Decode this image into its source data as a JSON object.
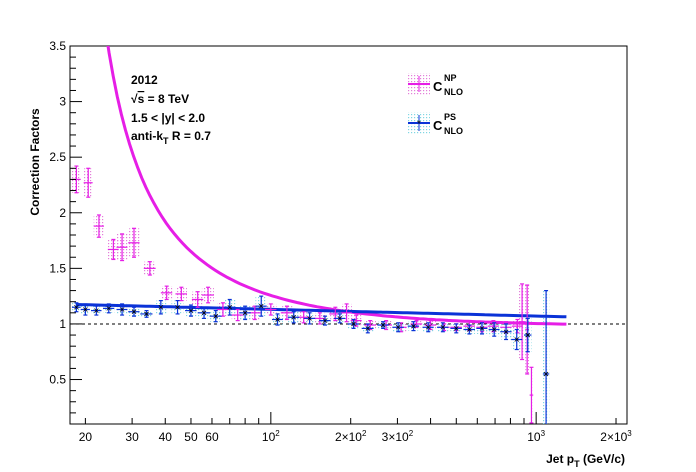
{
  "chart_data": {
    "type": "scatter",
    "title": "",
    "xlabel": "Jet p",
    "xlabel_sub": "T",
    "xlabel_unit": " (GeV/c)",
    "ylabel": "Correction Factors",
    "xscale": "log",
    "xlim": [
      17.5,
      2200
    ],
    "ylim": [
      0.1,
      3.5
    ],
    "grid": false,
    "reference_line": 1.0,
    "x_tick_labels": [
      {
        "x": 20,
        "text": "20"
      },
      {
        "x": 30,
        "text": "30"
      },
      {
        "x": 40,
        "text": "40"
      },
      {
        "x": 50,
        "text": "50"
      },
      {
        "x": 60,
        "text": "60"
      },
      {
        "x": 100,
        "text": "10",
        "sup": "2"
      },
      {
        "x": 200,
        "text": "2×10",
        "sup": "2"
      },
      {
        "x": 300,
        "text": "3×10",
        "sup": "2"
      },
      {
        "x": 1000,
        "text": "10",
        "sup": "3"
      },
      {
        "x": 2000,
        "text": "2×10",
        "sup": "3"
      }
    ],
    "y_tick_labels": [
      "0.5",
      "1",
      "1.5",
      "2",
      "2.5",
      "3",
      "3.5"
    ],
    "y_ticks": [
      0.5,
      1,
      1.5,
      2,
      2.5,
      3,
      3.5
    ],
    "annotations": {
      "year": "2012",
      "energy_sqrt": "s",
      "energy_rest": " = 8 TeV",
      "rapidity": "1.5 < |y| < 2.0",
      "algo_main": "anti-k",
      "algo_sub": "T",
      "algo_rest": " R = 0.7"
    },
    "legend_position": "top-right",
    "series": [
      {
        "name": "C",
        "name_sup": "NP",
        "name_sub": "NLO",
        "color": "#e61ee6",
        "fill": "#e37fd9",
        "points": [
          {
            "x": 18.5,
            "y": 2.3,
            "dx": 0.7,
            "err": 0.12
          },
          {
            "x": 20.5,
            "y": 2.27,
            "dx": 0.8,
            "err": 0.13
          },
          {
            "x": 22.5,
            "y": 1.88,
            "dx": 1.0,
            "err": 0.1
          },
          {
            "x": 25.5,
            "y": 1.67,
            "dx": 1.2,
            "err": 0.09
          },
          {
            "x": 27.5,
            "y": 1.69,
            "dx": 1.3,
            "err": 0.12
          },
          {
            "x": 30.5,
            "y": 1.73,
            "dx": 1.5,
            "err": 0.13
          },
          {
            "x": 35.0,
            "y": 1.5,
            "dx": 1.8,
            "err": 0.06
          },
          {
            "x": 40.5,
            "y": 1.28,
            "dx": 2.0,
            "err": 0.06
          },
          {
            "x": 46.0,
            "y": 1.27,
            "dx": 2.3,
            "err": 0.06
          },
          {
            "x": 53.0,
            "y": 1.22,
            "dx": 2.6,
            "err": 0.07
          },
          {
            "x": 58.0,
            "y": 1.26,
            "dx": 3.0,
            "err": 0.07
          },
          {
            "x": 66.0,
            "y": 1.13,
            "dx": 3.3,
            "err": 0.06
          },
          {
            "x": 75.0,
            "y": 1.08,
            "dx": 3.8,
            "err": 0.05
          },
          {
            "x": 87.0,
            "y": 1.1,
            "dx": 4.5,
            "err": 0.06
          },
          {
            "x": 100.0,
            "y": 1.13,
            "dx": 5.0,
            "err": 0.05
          },
          {
            "x": 115.0,
            "y": 1.1,
            "dx": 6.0,
            "err": 0.06
          },
          {
            "x": 133.0,
            "y": 1.06,
            "dx": 7.0,
            "err": 0.05
          },
          {
            "x": 153.0,
            "y": 1.05,
            "dx": 8.0,
            "err": 0.05
          },
          {
            "x": 175.0,
            "y": 1.09,
            "dx": 9.0,
            "err": 0.06
          },
          {
            "x": 193.0,
            "y": 1.1,
            "dx": 9.0,
            "err": 0.08
          },
          {
            "x": 210.0,
            "y": 1.03,
            "dx": 10.0,
            "err": 0.05
          },
          {
            "x": 237.0,
            "y": 0.99,
            "dx": 12.0,
            "err": 0.04
          },
          {
            "x": 272.0,
            "y": 0.99,
            "dx": 14.0,
            "err": 0.04
          },
          {
            "x": 310.0,
            "y": 0.97,
            "dx": 15.0,
            "err": 0.04
          },
          {
            "x": 354.0,
            "y": 1.0,
            "dx": 18.0,
            "err": 0.03
          },
          {
            "x": 400.0,
            "y": 0.99,
            "dx": 20.0,
            "err": 0.04
          },
          {
            "x": 450.0,
            "y": 0.97,
            "dx": 22.0,
            "err": 0.03
          },
          {
            "x": 500.0,
            "y": 0.97,
            "dx": 25.0,
            "err": 0.03
          },
          {
            "x": 560.0,
            "y": 0.98,
            "dx": 28.0,
            "err": 0.04
          },
          {
            "x": 625.0,
            "y": 0.97,
            "dx": 30.0,
            "err": 0.04
          },
          {
            "x": 690.0,
            "y": 0.98,
            "dx": 33.0,
            "err": 0.05
          },
          {
            "x": 770.0,
            "y": 0.97,
            "dx": 38.0,
            "err": 0.05
          },
          {
            "x": 850.0,
            "y": 0.98,
            "dx": 40.0,
            "err": 0.06
          },
          {
            "x": 885.0,
            "y": 1.02,
            "dx": 25.0,
            "err": 0.34
          },
          {
            "x": 925.0,
            "y": 0.95,
            "dx": 15.0,
            "err": 0.4
          },
          {
            "x": 960.0,
            "y": 0.36,
            "dx": 15.0,
            "err": 0.25
          }
        ],
        "curve_x": [
          18.5,
          1300
        ],
        "curve": {
          "base": 0.98,
          "amp": 23.5,
          "exp": 1.0,
          "x0": 15.0
        }
      },
      {
        "name": "C",
        "name_sup": "PS",
        "name_sub": "NLO",
        "color": "#0a32d7",
        "fill": "#7fd6e3",
        "points": [
          {
            "x": 18.5,
            "y": 1.15,
            "dx": 0.7,
            "err": 0.04
          },
          {
            "x": 20.0,
            "y": 1.13,
            "dx": 0.8,
            "err": 0.05
          },
          {
            "x": 22.0,
            "y": 1.12,
            "dx": 1.0,
            "err": 0.04
          },
          {
            "x": 24.5,
            "y": 1.14,
            "dx": 1.2,
            "err": 0.04
          },
          {
            "x": 27.5,
            "y": 1.13,
            "dx": 1.3,
            "err": 0.05
          },
          {
            "x": 30.5,
            "y": 1.11,
            "dx": 1.5,
            "err": 0.04
          },
          {
            "x": 34.0,
            "y": 1.09,
            "dx": 1.8,
            "err": 0.03
          },
          {
            "x": 38.5,
            "y": 1.15,
            "dx": 2.0,
            "err": 0.06
          },
          {
            "x": 44.5,
            "y": 1.15,
            "dx": 2.3,
            "err": 0.06
          },
          {
            "x": 50.0,
            "y": 1.12,
            "dx": 2.5,
            "err": 0.05
          },
          {
            "x": 56.0,
            "y": 1.1,
            "dx": 3.0,
            "err": 0.05
          },
          {
            "x": 62.0,
            "y": 1.07,
            "dx": 3.2,
            "err": 0.05
          },
          {
            "x": 70.0,
            "y": 1.15,
            "dx": 3.6,
            "err": 0.07
          },
          {
            "x": 80.0,
            "y": 1.1,
            "dx": 4.0,
            "err": 0.06
          },
          {
            "x": 92.0,
            "y": 1.16,
            "dx": 4.5,
            "err": 0.09
          },
          {
            "x": 106.0,
            "y": 1.04,
            "dx": 5.0,
            "err": 0.05
          },
          {
            "x": 122.0,
            "y": 1.06,
            "dx": 6.0,
            "err": 0.05
          },
          {
            "x": 140.0,
            "y": 1.05,
            "dx": 7.0,
            "err": 0.05
          },
          {
            "x": 160.0,
            "y": 1.03,
            "dx": 8.0,
            "err": 0.04
          },
          {
            "x": 182.0,
            "y": 1.05,
            "dx": 9.0,
            "err": 0.04
          },
          {
            "x": 205.0,
            "y": 1.0,
            "dx": 10.0,
            "err": 0.04
          },
          {
            "x": 232.0,
            "y": 0.96,
            "dx": 12.0,
            "err": 0.04
          },
          {
            "x": 265.0,
            "y": 0.99,
            "dx": 13.0,
            "err": 0.03
          },
          {
            "x": 302.0,
            "y": 0.97,
            "dx": 15.0,
            "err": 0.04
          },
          {
            "x": 345.0,
            "y": 0.98,
            "dx": 17.0,
            "err": 0.04
          },
          {
            "x": 392.0,
            "y": 0.97,
            "dx": 19.0,
            "err": 0.04
          },
          {
            "x": 445.0,
            "y": 0.97,
            "dx": 22.0,
            "err": 0.04
          },
          {
            "x": 500.0,
            "y": 0.96,
            "dx": 25.0,
            "err": 0.04
          },
          {
            "x": 560.0,
            "y": 0.95,
            "dx": 28.0,
            "err": 0.04
          },
          {
            "x": 625.0,
            "y": 0.96,
            "dx": 30.0,
            "err": 0.05
          },
          {
            "x": 695.0,
            "y": 0.95,
            "dx": 33.0,
            "err": 0.06
          },
          {
            "x": 770.0,
            "y": 0.93,
            "dx": 38.0,
            "err": 0.07
          },
          {
            "x": 845.0,
            "y": 0.86,
            "dx": 40.0,
            "err": 0.09
          },
          {
            "x": 930.0,
            "y": 0.9,
            "dx": 30.0,
            "err": 0.15
          },
          {
            "x": 1090.0,
            "y": 0.55,
            "dx": 30.0,
            "err": 0.75
          }
        ],
        "curve_x": [
          18.5,
          1300
        ],
        "curve": {
          "base": 1.175,
          "slope": -0.06
        }
      }
    ]
  }
}
